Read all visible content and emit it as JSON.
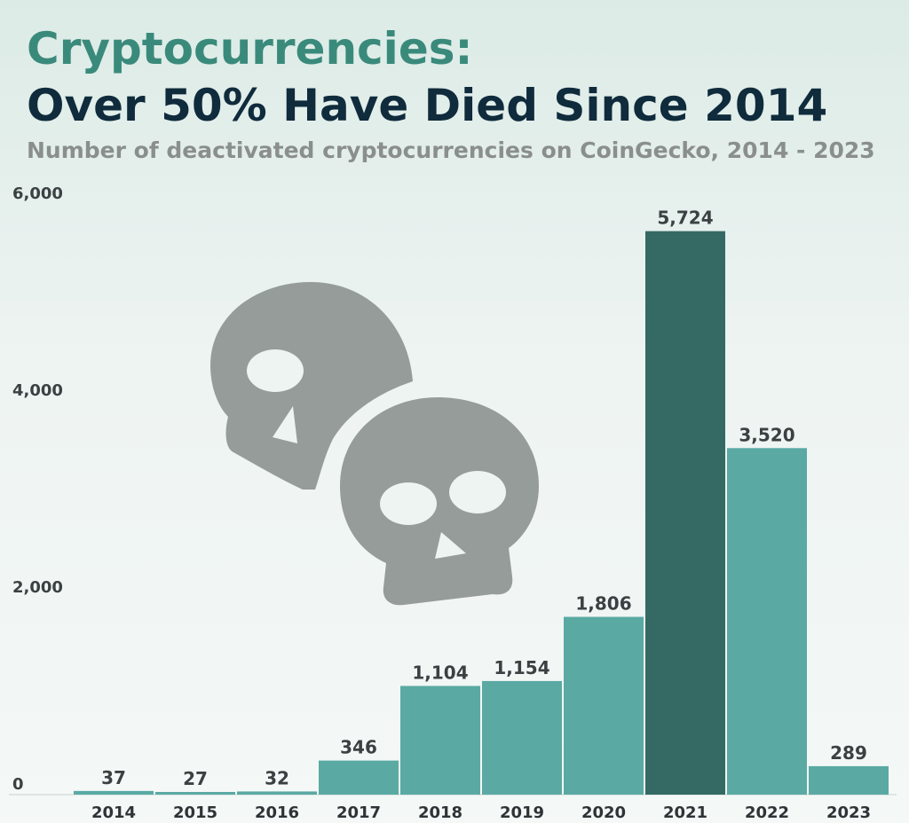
{
  "chart_data": {
    "type": "bar",
    "title_line1": "Cryptocurrencies:",
    "title_line2": "Over 50% Have Died Since 2014",
    "subtitle": "Number of deactivated cryptocurrencies on CoinGecko, 2014 - 2023",
    "categories": [
      "2014",
      "2015",
      "2016",
      "2017",
      "2018",
      "2019",
      "2020",
      "2021",
      "2022",
      "2023"
    ],
    "values": [
      37,
      27,
      32,
      346,
      1104,
      1154,
      1806,
      5724,
      3520,
      289
    ],
    "data_labels": [
      "37",
      "27",
      "32",
      "346",
      "1,104",
      "1,154",
      "1,806",
      "5,724",
      "3,520",
      "289"
    ],
    "y_ticks": [
      {
        "value": 0,
        "label": "0"
      },
      {
        "value": 2000,
        "label": "2,000"
      },
      {
        "value": 4000,
        "label": "4,000"
      },
      {
        "value": 6000,
        "label": "6,000"
      }
    ],
    "ylim": [
      0,
      6000
    ],
    "grid": false,
    "highlight_category": "2021",
    "colors": {
      "bar": "#5aaaa3",
      "bar_highlight": "#346a63",
      "title_accent": "#3a8a7b",
      "title_main": "#0f2b3c",
      "subtitle": "#8a8f8e",
      "skull_icon": "#969c9a"
    },
    "icons": [
      "skull-icon",
      "skull-icon"
    ]
  }
}
